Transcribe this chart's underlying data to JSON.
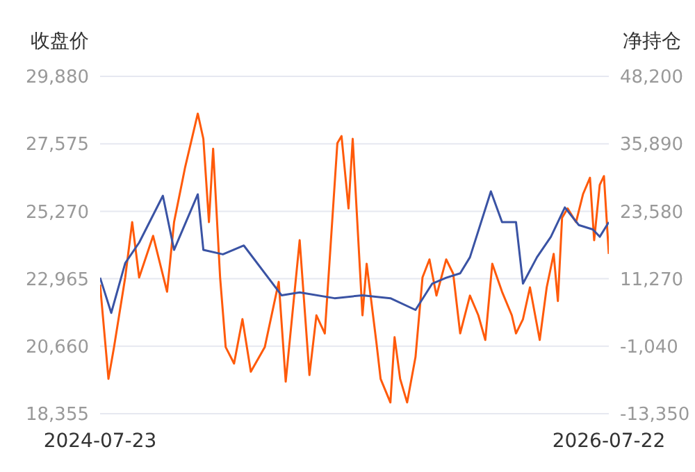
{
  "chart_data": {
    "type": "line",
    "ylabel": "收盘价",
    "y2label": "净持仓",
    "grid": "y",
    "marker": "none",
    "xlim": [
      "2024-07-23",
      "2026-07-22"
    ],
    "xticks": [
      "2024-07-23",
      "2026-07-22"
    ],
    "ylim": [
      18355,
      29880
    ],
    "yticks": [
      {
        "value": 18355,
        "label": "18,355"
      },
      {
        "value": 20660,
        "label": "20,660"
      },
      {
        "value": 22965,
        "label": "22,965"
      },
      {
        "value": 25270,
        "label": "25,270"
      },
      {
        "value": 27575,
        "label": "27,575"
      },
      {
        "value": 29880,
        "label": "29,880"
      }
    ],
    "y2lim": [
      -13350,
      48200
    ],
    "y2ticks": [
      {
        "value": -13350,
        "label": "-13,350"
      },
      {
        "value": -1040,
        "label": "-1,040"
      },
      {
        "value": 11270,
        "label": "11,270"
      },
      {
        "value": 23580,
        "label": "23,580"
      },
      {
        "value": 35890,
        "label": "35,890"
      },
      {
        "value": 48200,
        "label": "48,200"
      }
    ],
    "series": [
      {
        "color": "#ff5a0a",
        "axis": "y2",
        "x": [
          "2024-07-23",
          "2024-08-04",
          "2024-08-12",
          "2024-08-28",
          "2024-09-07",
          "2024-09-17",
          "2024-10-07",
          "2024-10-27",
          "2024-11-06",
          "2024-11-22",
          "2024-12-10",
          "2024-12-18",
          "2024-12-26",
          "2025-01-01",
          "2025-01-11",
          "2025-01-19",
          "2025-01-31",
          "2025-02-12",
          "2025-02-24",
          "2025-03-16",
          "2025-04-05",
          "2025-04-15",
          "2025-05-05",
          "2025-05-19",
          "2025-05-29",
          "2025-06-10",
          "2025-06-28",
          "2025-07-04",
          "2025-07-14",
          "2025-07-20",
          "2025-08-03",
          "2025-08-09",
          "2025-08-23",
          "2025-08-29",
          "2025-09-12",
          "2025-09-18",
          "2025-09-26",
          "2025-10-06",
          "2025-10-18",
          "2025-10-28",
          "2025-11-07",
          "2025-11-17",
          "2025-12-01",
          "2025-12-11",
          "2025-12-21",
          "2026-01-04",
          "2026-01-16",
          "2026-01-26",
          "2026-02-05",
          "2026-02-19",
          "2026-03-05",
          "2026-03-11",
          "2026-03-21",
          "2026-03-31",
          "2026-04-14",
          "2026-04-24",
          "2026-05-04",
          "2026-05-10",
          "2026-05-16",
          "2026-05-24",
          "2026-06-05",
          "2026-06-15",
          "2026-06-25",
          "2026-07-01",
          "2026-07-09",
          "2026-07-15",
          "2026-07-22"
        ],
        "values": [
          10200,
          -7000,
          -1200,
          11500,
          21600,
          11500,
          19100,
          8900,
          21600,
          31700,
          41400,
          36800,
          21600,
          35000,
          11500,
          -1200,
          -4200,
          3900,
          -5700,
          -1200,
          10700,
          -7500,
          18300,
          -6300,
          4600,
          1300,
          36000,
          37300,
          24100,
          36800,
          4600,
          14000,
          -400,
          -7000,
          -11300,
          600,
          -7000,
          -11300,
          -3000,
          11500,
          14800,
          8200,
          14800,
          12200,
          1300,
          8200,
          4600,
          100,
          14000,
          8900,
          4600,
          1300,
          3900,
          9700,
          100,
          9700,
          15800,
          7200,
          22400,
          24100,
          21600,
          26700,
          29700,
          18300,
          28400,
          30000,
          15800
        ]
      },
      {
        "color": "#3a53a4",
        "x": [
          "2024-07-23",
          "2024-08-08",
          "2024-08-28",
          "2024-09-17",
          "2024-10-21",
          "2024-11-06",
          "2024-12-10",
          "2024-12-18",
          "2025-01-15",
          "2025-02-14",
          "2025-04-09",
          "2025-05-05",
          "2025-06-24",
          "2025-08-03",
          "2025-09-12",
          "2025-10-18",
          "2025-11-11",
          "2025-12-01",
          "2025-12-21",
          "2026-01-04",
          "2026-02-03",
          "2026-02-19",
          "2026-03-11",
          "2026-03-21",
          "2026-04-10",
          "2026-04-30",
          "2026-05-20",
          "2026-06-09",
          "2026-06-29",
          "2026-07-09",
          "2026-07-22"
        ],
        "values": [
          23000,
          21800,
          23500,
          24200,
          25800,
          23950,
          25850,
          23950,
          23800,
          24100,
          22400,
          22500,
          22300,
          22400,
          22300,
          21900,
          22800,
          23000,
          23150,
          23700,
          25950,
          24900,
          24900,
          22800,
          23700,
          24400,
          25400,
          24800,
          24650,
          24400,
          24900
        ]
      }
    ]
  }
}
